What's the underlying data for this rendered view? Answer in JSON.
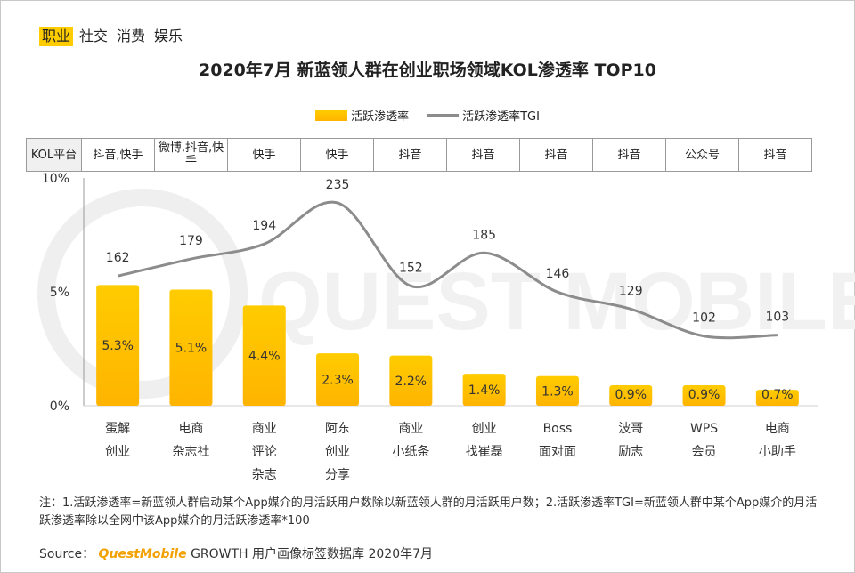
{
  "tags": [
    {
      "label": "职业",
      "active": true
    },
    {
      "label": "社交",
      "active": false
    },
    {
      "label": "消费",
      "active": false
    },
    {
      "label": "娱乐",
      "active": false
    }
  ],
  "colors": {
    "bar_top": "#ffcc00",
    "bar_bottom": "#ffb400",
    "line": "#8c8c8c",
    "tag_active": "#ffcc00",
    "brand": "#f2a100"
  },
  "kol": {
    "header": "KOL平台",
    "platforms": [
      "抖音,快手",
      "微博,抖音,快手",
      "快手",
      "快手",
      "抖音",
      "抖音",
      "抖音",
      "抖音",
      "公众号",
      "抖音"
    ]
  },
  "watermark": "QUEST MOBILE",
  "note": "注：1.活跃渗透率=新蓝领人群启动某个App媒介的月活跃用户数除以新蓝领人群的月活跃用户数；2.活跃渗透率TGI=新蓝领人群中某个App媒介的月活跃渗透率除以全网中该App媒介的月活跃渗透率*100",
  "source": {
    "prefix": "Source：",
    "brand": "QuestMobile",
    "suffix": "GROWTH 用户画像标签数据库 2020年7月"
  },
  "chart_data": {
    "type": "bar",
    "title": "2020年7月 新蓝领人群在创业职场领域KOL渗透率 TOP10",
    "categories": [
      "蛋解创业",
      "电商杂志社",
      "商业评论杂志",
      "阿东创业分享",
      "商业小纸条",
      "创业找崔磊",
      "Boss面对面",
      "波哥励志",
      "WPS会员",
      "电商小助手"
    ],
    "category_lines": [
      [
        "蛋解",
        "创业"
      ],
      [
        "电商",
        "杂志社"
      ],
      [
        "商业",
        "评论",
        "杂志"
      ],
      [
        "阿东",
        "创业",
        "分享"
      ],
      [
        "商业",
        "小纸条"
      ],
      [
        "创业",
        "找崔磊"
      ],
      [
        "Boss",
        "面对面"
      ],
      [
        "波哥",
        "励志"
      ],
      [
        "WPS",
        "会员"
      ],
      [
        "电商",
        "小助手"
      ]
    ],
    "series": [
      {
        "name": "活跃渗透率",
        "type": "bar",
        "values": [
          5.3,
          5.1,
          4.4,
          2.3,
          2.2,
          1.4,
          1.3,
          0.9,
          0.9,
          0.7
        ],
        "labels": [
          "5.3%",
          "5.1%",
          "4.4%",
          "2.3%",
          "2.2%",
          "1.4%",
          "1.3%",
          "0.9%",
          "0.9%",
          "0.7%"
        ]
      },
      {
        "name": "活跃渗透率TGI",
        "type": "line",
        "values": [
          162,
          179,
          194,
          235,
          152,
          185,
          146,
          129,
          102,
          103
        ]
      }
    ],
    "ylim": [
      0,
      10
    ],
    "yticks": [
      "0%",
      "5%",
      "10%"
    ],
    "ytick_values": [
      0,
      5,
      10
    ],
    "tgi_range": [
      60,
      260
    ],
    "legend_position": "top-center"
  }
}
